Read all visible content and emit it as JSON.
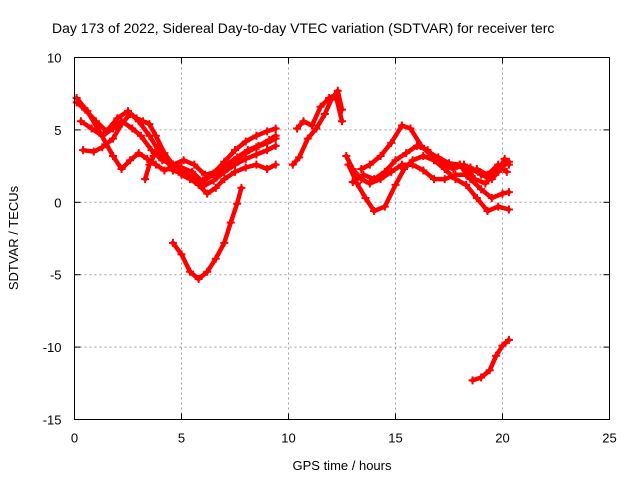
{
  "chart_data": {
    "type": "scatter",
    "title": "Day 173 of 2022, Sidereal Day-to-day VTEC variation (SDTVAR) for receiver terc",
    "xlabel": "GPS time / hours",
    "ylabel": "SDTVAR / TECUs",
    "xlim": [
      0,
      25
    ],
    "ylim": [
      -15,
      10
    ],
    "xticks": [
      0,
      5,
      10,
      15,
      20,
      25
    ],
    "yticks": [
      -15,
      -10,
      -5,
      0,
      5,
      10
    ],
    "grid": true,
    "color": "#ff0000",
    "series": [
      {
        "name": "track-a",
        "points": [
          [
            0.1,
            6.9
          ],
          [
            0.5,
            6.4
          ],
          [
            1.0,
            5.6
          ],
          [
            1.5,
            4.9
          ],
          [
            2.0,
            5.8
          ],
          [
            2.5,
            6.3
          ],
          [
            3.0,
            5.6
          ],
          [
            3.5,
            4.6
          ],
          [
            4.0,
            3.4
          ],
          [
            4.5,
            2.7
          ],
          [
            5.0,
            2.4
          ],
          [
            5.5,
            2.1
          ],
          [
            6.0,
            1.4
          ],
          [
            6.5,
            2.0
          ],
          [
            7.0,
            2.8
          ],
          [
            7.5,
            3.6
          ],
          [
            8.0,
            4.2
          ],
          [
            8.5,
            4.6
          ],
          [
            9.0,
            4.9
          ],
          [
            9.4,
            5.1
          ]
        ]
      },
      {
        "name": "track-b",
        "points": [
          [
            0.1,
            7.2
          ],
          [
            0.6,
            6.3
          ],
          [
            1.2,
            4.8
          ],
          [
            1.8,
            3.2
          ],
          [
            2.2,
            2.3
          ],
          [
            2.6,
            2.9
          ],
          [
            3.0,
            3.4
          ],
          [
            3.4,
            3.0
          ],
          [
            3.8,
            2.6
          ],
          [
            4.2,
            2.2
          ],
          [
            4.7,
            2.5
          ],
          [
            5.1,
            2.1
          ],
          [
            5.5,
            1.7
          ],
          [
            6.0,
            1.1
          ],
          [
            6.5,
            1.5
          ],
          [
            7.0,
            2.1
          ],
          [
            7.5,
            2.6
          ],
          [
            8.0,
            3.0
          ],
          [
            8.5,
            3.3
          ],
          [
            9.0,
            3.6
          ],
          [
            9.4,
            3.9
          ]
        ]
      },
      {
        "name": "track-c",
        "points": [
          [
            0.3,
            5.6
          ],
          [
            0.8,
            5.1
          ],
          [
            1.3,
            4.6
          ],
          [
            1.8,
            5.1
          ],
          [
            2.2,
            5.6
          ],
          [
            2.7,
            5.1
          ],
          [
            3.1,
            4.6
          ],
          [
            3.6,
            3.6
          ],
          [
            4.1,
            2.9
          ],
          [
            4.6,
            2.6
          ],
          [
            5.1,
            2.9
          ],
          [
            5.6,
            2.6
          ],
          [
            6.1,
            1.9
          ],
          [
            6.6,
            2.1
          ],
          [
            7.1,
            2.6
          ],
          [
            7.6,
            3.1
          ],
          [
            8.1,
            3.6
          ],
          [
            8.6,
            3.9
          ],
          [
            9.1,
            4.3
          ],
          [
            9.4,
            4.6
          ]
        ]
      },
      {
        "name": "track-d",
        "points": [
          [
            0.4,
            3.6
          ],
          [
            0.9,
            3.5
          ],
          [
            1.3,
            3.8
          ],
          [
            1.8,
            4.4
          ],
          [
            2.2,
            5.4
          ],
          [
            2.6,
            6.1
          ],
          [
            2.9,
            5.8
          ],
          [
            3.2,
            5.6
          ],
          [
            3.5,
            5.4
          ],
          [
            3.8,
            4.6
          ],
          [
            4.2,
            3.4
          ],
          [
            4.6,
            2.6
          ],
          [
            5.0,
            1.9
          ],
          [
            5.4,
            1.6
          ],
          [
            5.8,
            1.2
          ],
          [
            6.2,
            0.6
          ],
          [
            6.6,
            1.0
          ],
          [
            7.0,
            1.6
          ],
          [
            7.5,
            2.1
          ],
          [
            8.0,
            2.4
          ],
          [
            8.5,
            2.6
          ],
          [
            9.0,
            2.3
          ],
          [
            9.4,
            2.6
          ]
        ]
      },
      {
        "name": "track-e",
        "points": [
          [
            3.3,
            1.6
          ],
          [
            3.5,
            2.6
          ],
          [
            3.7,
            3.2
          ],
          [
            3.9,
            3.9
          ],
          [
            4.1,
            3.4
          ],
          [
            4.3,
            2.9
          ],
          [
            4.6,
            2.2
          ],
          [
            5.0,
            2.0
          ],
          [
            5.5,
            1.7
          ],
          [
            6.0,
            1.5
          ],
          [
            6.5,
            1.9
          ],
          [
            7.0,
            2.4
          ],
          [
            7.5,
            2.9
          ],
          [
            8.0,
            3.4
          ],
          [
            8.5,
            3.8
          ],
          [
            9.0,
            4.1
          ],
          [
            9.4,
            4.4
          ]
        ]
      },
      {
        "name": "track-f",
        "points": [
          [
            4.6,
            -2.8
          ],
          [
            5.0,
            -3.6
          ],
          [
            5.4,
            -4.8
          ],
          [
            5.8,
            -5.3
          ],
          [
            6.2,
            -4.8
          ],
          [
            6.6,
            -3.9
          ],
          [
            7.0,
            -2.8
          ],
          [
            7.3,
            -1.4
          ],
          [
            7.6,
            -0.1
          ],
          [
            7.8,
            1.0
          ]
        ]
      },
      {
        "name": "track-g",
        "points": [
          [
            10.2,
            2.6
          ],
          [
            10.5,
            3.1
          ],
          [
            10.9,
            4.4
          ],
          [
            11.3,
            5.1
          ],
          [
            11.7,
            6.1
          ],
          [
            12.0,
            7.1
          ],
          [
            12.3,
            7.7
          ],
          [
            12.5,
            6.4
          ]
        ]
      },
      {
        "name": "track-h",
        "points": [
          [
            10.4,
            5.1
          ],
          [
            10.7,
            5.6
          ],
          [
            11.1,
            5.3
          ],
          [
            11.5,
            6.6
          ],
          [
            11.9,
            7.2
          ],
          [
            12.2,
            7.4
          ],
          [
            12.5,
            5.6
          ]
        ]
      },
      {
        "name": "track-i",
        "points": [
          [
            12.7,
            3.2
          ],
          [
            13.0,
            2.3
          ],
          [
            13.4,
            1.6
          ],
          [
            13.8,
            1.3
          ],
          [
            14.3,
            1.6
          ],
          [
            14.8,
            2.1
          ],
          [
            15.3,
            2.6
          ],
          [
            15.8,
            2.6
          ],
          [
            16.3,
            2.2
          ],
          [
            16.8,
            1.6
          ],
          [
            17.3,
            1.6
          ],
          [
            17.8,
            1.9
          ],
          [
            18.3,
            1.9
          ],
          [
            18.8,
            2.3
          ],
          [
            19.3,
            1.9
          ],
          [
            19.8,
            2.6
          ],
          [
            20.2,
            2.1
          ]
        ]
      },
      {
        "name": "track-j",
        "points": [
          [
            12.8,
            2.6
          ],
          [
            13.2,
            1.3
          ],
          [
            13.6,
            0.3
          ],
          [
            14.0,
            -0.6
          ],
          [
            14.5,
            -0.3
          ],
          [
            15.0,
            1.2
          ],
          [
            15.4,
            2.3
          ],
          [
            15.8,
            2.9
          ],
          [
            16.3,
            3.2
          ],
          [
            16.8,
            2.9
          ],
          [
            17.3,
            2.3
          ],
          [
            17.8,
            1.6
          ],
          [
            18.3,
            1.2
          ],
          [
            18.8,
            0.3
          ],
          [
            19.3,
            -0.6
          ],
          [
            19.8,
            -0.3
          ],
          [
            20.3,
            -0.5
          ]
        ]
      },
      {
        "name": "track-k",
        "points": [
          [
            13.4,
            2.3
          ],
          [
            13.8,
            2.6
          ],
          [
            14.3,
            3.2
          ],
          [
            14.8,
            4.1
          ],
          [
            15.3,
            5.3
          ],
          [
            15.7,
            5.1
          ],
          [
            16.2,
            3.9
          ],
          [
            16.7,
            3.2
          ],
          [
            17.2,
            2.6
          ],
          [
            17.7,
            2.3
          ],
          [
            18.2,
            2.6
          ],
          [
            18.7,
            1.6
          ],
          [
            19.2,
            1.3
          ],
          [
            19.7,
            2.1
          ],
          [
            20.3,
            2.8
          ]
        ]
      },
      {
        "name": "track-l",
        "points": [
          [
            13.0,
            1.4
          ],
          [
            13.5,
            1.9
          ],
          [
            14.0,
            1.6
          ],
          [
            14.5,
            2.1
          ],
          [
            15.0,
            2.9
          ],
          [
            15.5,
            3.4
          ],
          [
            16.0,
            3.9
          ],
          [
            16.5,
            3.6
          ],
          [
            17.0,
            2.9
          ],
          [
            17.5,
            2.6
          ],
          [
            18.0,
            2.6
          ],
          [
            18.5,
            1.6
          ],
          [
            19.0,
            0.9
          ],
          [
            19.5,
            0.3
          ],
          [
            20.0,
            0.6
          ],
          [
            20.3,
            0.7
          ]
        ]
      },
      {
        "name": "track-m",
        "points": [
          [
            16.6,
            3.4
          ],
          [
            17.0,
            3.1
          ],
          [
            17.5,
            2.7
          ],
          [
            18.0,
            2.6
          ],
          [
            18.5,
            2.4
          ],
          [
            19.0,
            1.9
          ],
          [
            19.5,
            1.6
          ],
          [
            19.8,
            2.1
          ],
          [
            20.1,
            3.0
          ],
          [
            20.3,
            2.6
          ]
        ]
      },
      {
        "name": "track-n",
        "points": [
          [
            18.6,
            -12.3
          ],
          [
            19.0,
            -12.1
          ],
          [
            19.4,
            -11.6
          ],
          [
            19.7,
            -10.6
          ],
          [
            20.0,
            -9.9
          ],
          [
            20.3,
            -9.5
          ]
        ]
      }
    ]
  }
}
